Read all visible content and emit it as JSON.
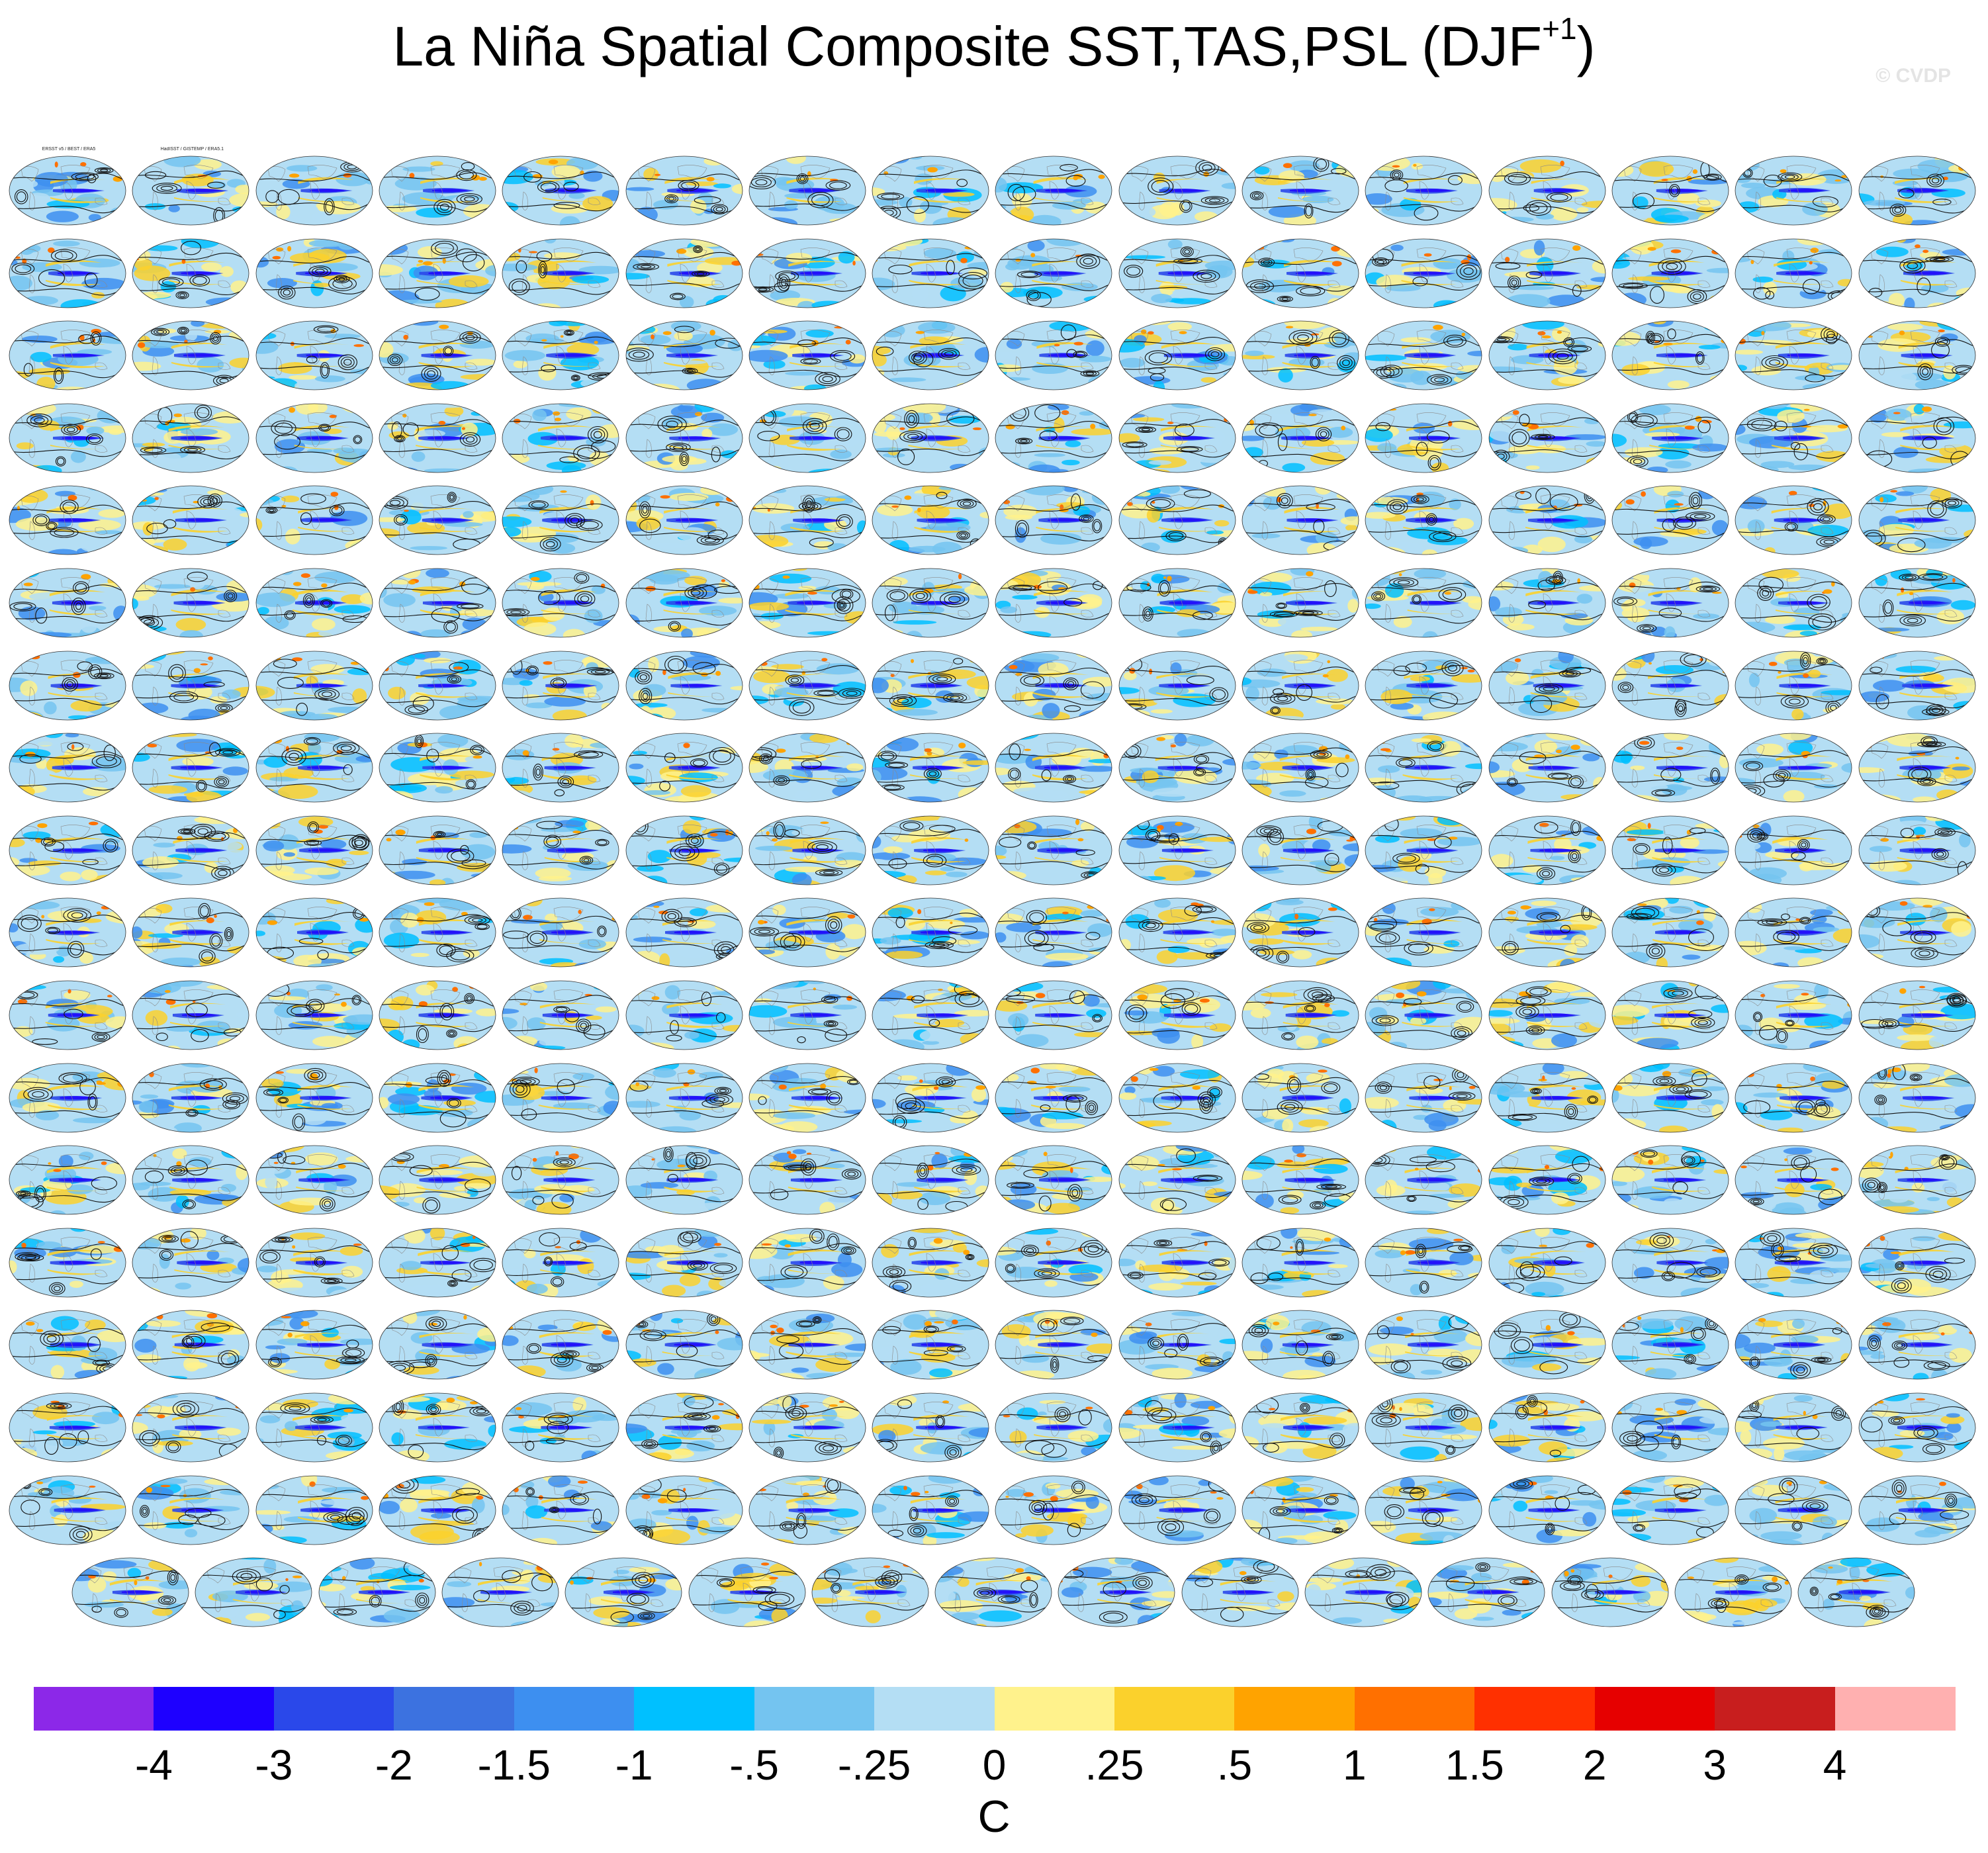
{
  "title": "La Niña Spatial Composite SST,TAS,PSL (DJF",
  "title_sup": "+1",
  "title_close": ")",
  "watermark": "© CVDP",
  "chart_data": {
    "type": "heatmap",
    "description_kind": "grid of global map composites",
    "rows": 18,
    "cols": 16,
    "last_row_count": 15,
    "panel_labels_first": [
      "ERSST v5 / BEST / ERA5",
      "HadISST / GISTEMP / ERA5.1"
    ],
    "colorbar": {
      "unit": "C",
      "tick_labels": [
        "-4",
        "-3",
        "-2",
        "-1.5",
        "-1",
        "-.5",
        "-.25",
        "0",
        ".25",
        ".5",
        "1",
        "1.5",
        "2",
        "3",
        "4"
      ],
      "colors": [
        "#8c28e8",
        "#1e00ff",
        "#2a48ea",
        "#3c72e0",
        "#3d8ff0",
        "#00c0ff",
        "#74c4f0",
        "#b4def4",
        "#fff28c",
        "#fbd12c",
        "#ffa300",
        "#ff7000",
        "#ff3000",
        "#e60000",
        "#c81e1e",
        "#ffb0b0"
      ]
    }
  }
}
